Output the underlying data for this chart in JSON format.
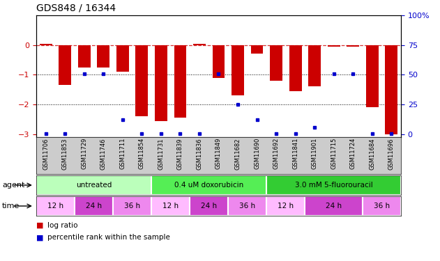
{
  "title": "GDS848 / 16344",
  "samples": [
    "GSM11706",
    "GSM11853",
    "GSM11729",
    "GSM11746",
    "GSM11711",
    "GSM11854",
    "GSM11731",
    "GSM11839",
    "GSM11836",
    "GSM11849",
    "GSM11682",
    "GSM11690",
    "GSM11692",
    "GSM11841",
    "GSM11901",
    "GSM11715",
    "GSM11724",
    "GSM11684",
    "GSM11696"
  ],
  "log_ratio": [
    0.05,
    -1.35,
    -0.75,
    -0.75,
    -0.9,
    -2.4,
    -2.55,
    -2.45,
    0.05,
    -1.1,
    -1.7,
    -0.3,
    -1.2,
    -1.55,
    -1.4,
    -0.05,
    -0.05,
    -2.1,
    -3.0
  ],
  "percentile_rank": [
    3,
    3,
    52,
    52,
    14,
    3,
    3,
    3,
    3,
    52,
    27,
    14,
    3,
    3,
    8,
    52,
    52,
    3,
    3
  ],
  "agents": [
    {
      "label": "untreated",
      "start": 0,
      "end": 6,
      "color": "#bbffbb"
    },
    {
      "label": "0.4 uM doxorubicin",
      "start": 6,
      "end": 12,
      "color": "#55ee55"
    },
    {
      "label": "3.0 mM 5-fluorouracil",
      "start": 12,
      "end": 19,
      "color": "#33cc33"
    }
  ],
  "times": [
    {
      "label": "12 h",
      "start": 0,
      "end": 2,
      "color": "#ffbbff"
    },
    {
      "label": "24 h",
      "start": 2,
      "end": 4,
      "color": "#cc44cc"
    },
    {
      "label": "36 h",
      "start": 4,
      "end": 6,
      "color": "#ee88ee"
    },
    {
      "label": "12 h",
      "start": 6,
      "end": 8,
      "color": "#ffbbff"
    },
    {
      "label": "24 h",
      "start": 8,
      "end": 10,
      "color": "#cc44cc"
    },
    {
      "label": "36 h",
      "start": 10,
      "end": 12,
      "color": "#ee88ee"
    },
    {
      "label": "12 h",
      "start": 12,
      "end": 14,
      "color": "#ffbbff"
    },
    {
      "label": "24 h",
      "start": 14,
      "end": 17,
      "color": "#cc44cc"
    },
    {
      "label": "36 h",
      "start": 17,
      "end": 19,
      "color": "#ee88ee"
    }
  ],
  "bar_color": "#cc0000",
  "point_color": "#0000cc",
  "ylim": [
    -3.1,
    1.0
  ],
  "yticks_left": [
    0,
    -1,
    -2,
    -3
  ],
  "yticks_right_vals": [
    "0",
    "25",
    "50",
    "75",
    "100%"
  ],
  "yticks_right_pos": [
    -3.0,
    -2.0,
    -1.0,
    0.0,
    1.0
  ],
  "hline_y": 0,
  "dotline_y": [
    -1,
    -2
  ],
  "bg_color": "#ffffff",
  "sample_bg": "#cccccc"
}
